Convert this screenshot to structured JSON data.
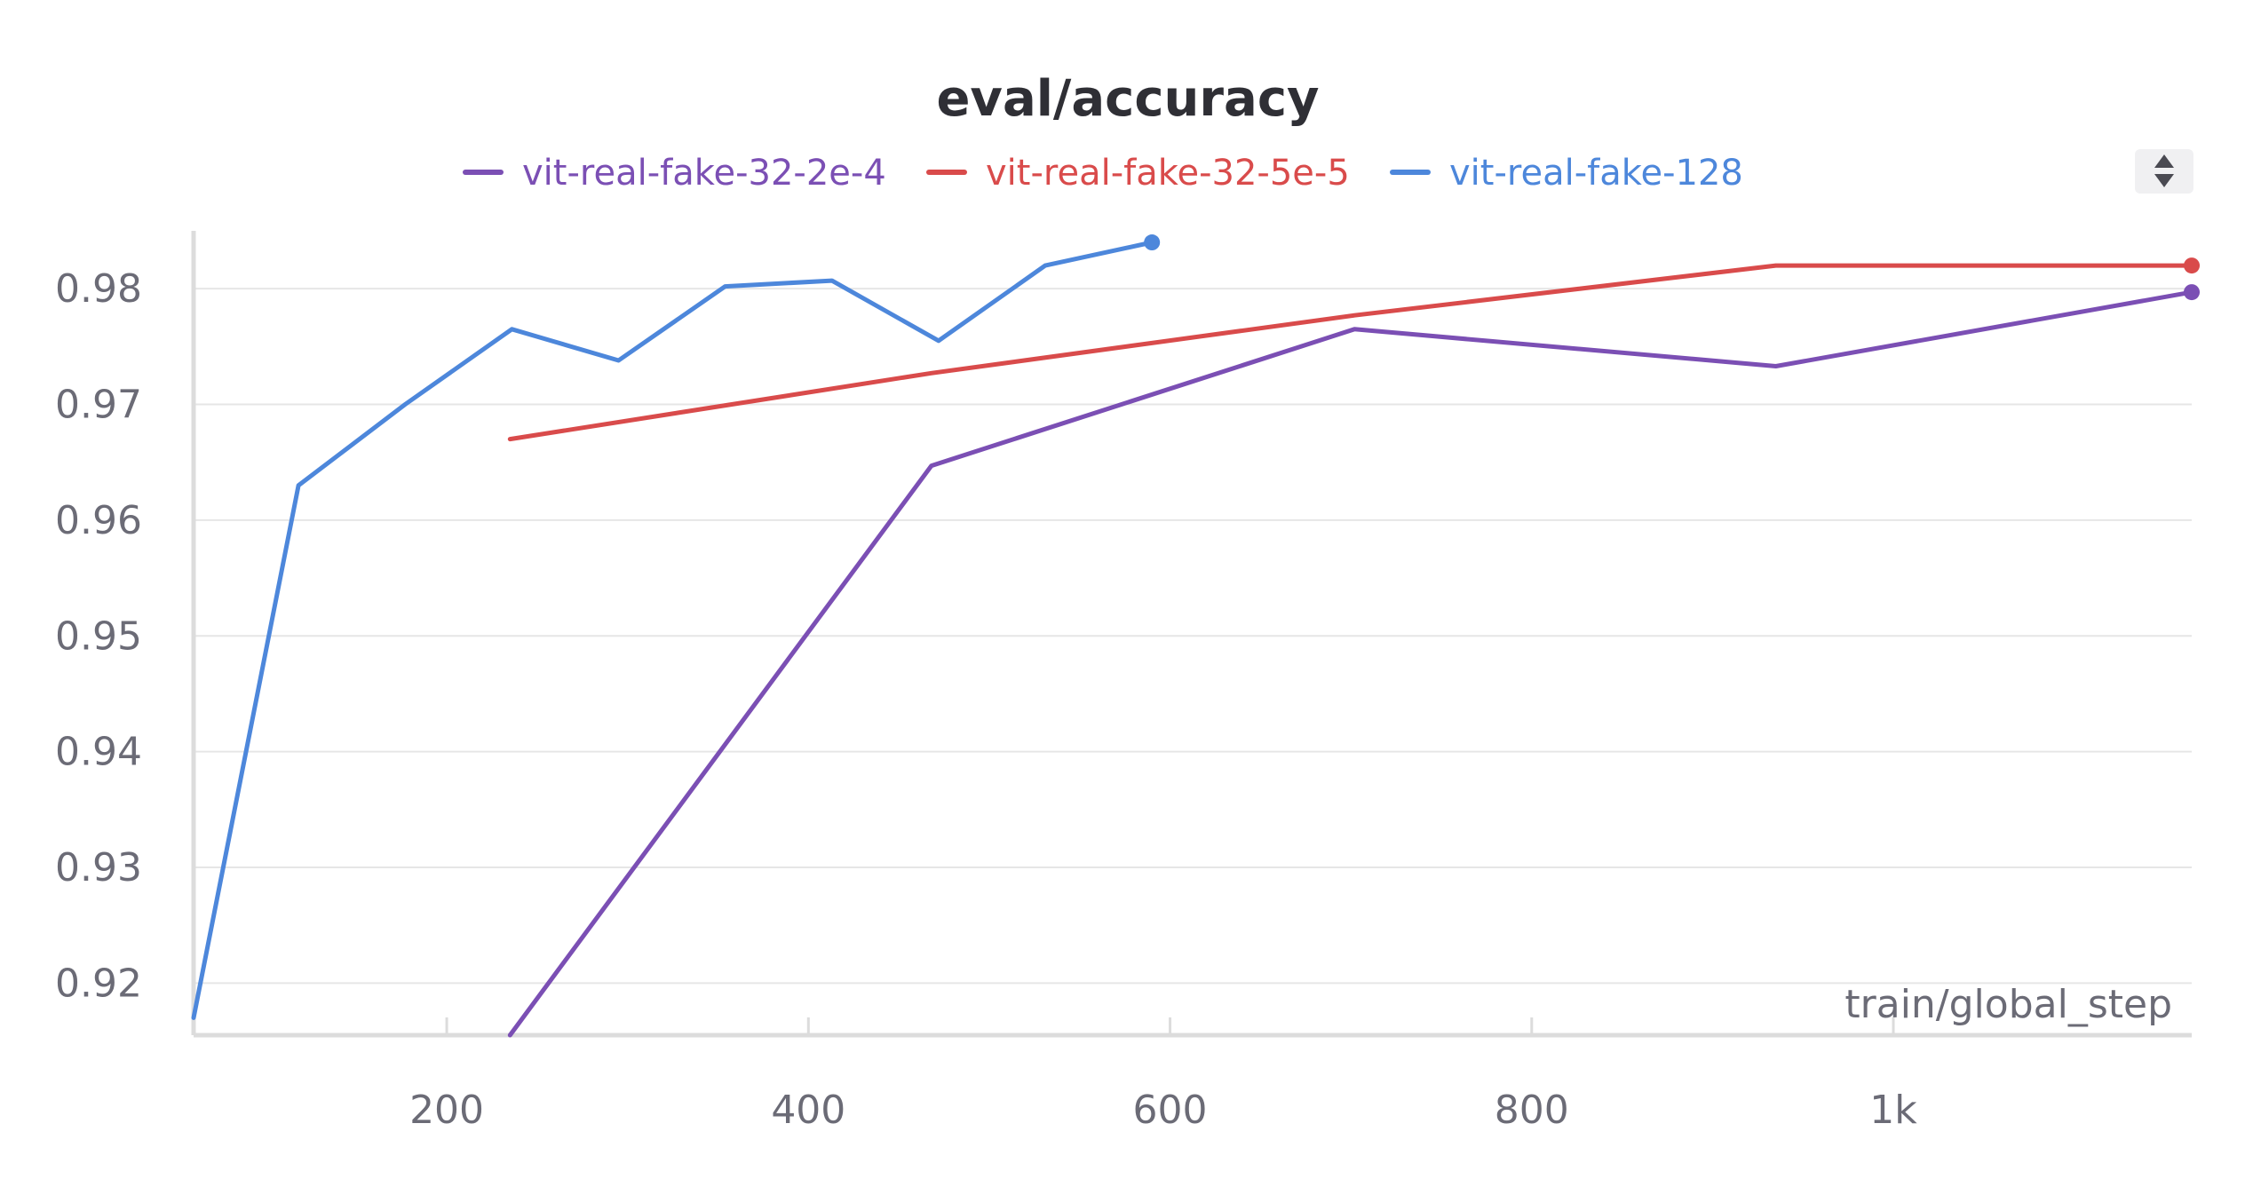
{
  "chart_data": {
    "type": "line",
    "title": "eval/accuracy",
    "xlabel": "train/global_step",
    "ylabel": "",
    "xlim": [
      60,
      1165
    ],
    "ylim": [
      0.9155,
      0.985
    ],
    "x_ticks": [
      200,
      400,
      600,
      800,
      1000
    ],
    "x_tick_labels": [
      "200",
      "400",
      "600",
      "800",
      "1k"
    ],
    "y_ticks": [
      0.92,
      0.93,
      0.94,
      0.95,
      0.96,
      0.97,
      0.98
    ],
    "y_tick_labels": [
      "0.92",
      "0.93",
      "0.94",
      "0.95",
      "0.96",
      "0.97",
      "0.98"
    ],
    "grid": true,
    "legend_position": "top-center",
    "series": [
      {
        "name": "vit-real-fake-32-2e-4",
        "color": "#7b4fb4",
        "x": [
          235,
          468,
          702,
          935,
          1165
        ],
        "y": [
          0.9155,
          0.9647,
          0.9765,
          0.9733,
          0.9797
        ]
      },
      {
        "name": "vit-real-fake-32-5e-5",
        "color": "#d94b4b",
        "x": [
          235,
          468,
          702,
          935,
          1165
        ],
        "y": [
          0.967,
          0.9727,
          0.9777,
          0.982,
          0.982
        ]
      },
      {
        "name": "vit-real-fake-128",
        "color": "#4d87db",
        "x": [
          60,
          118,
          177,
          236,
          295,
          354,
          413,
          472,
          531,
          590
        ],
        "y": [
          0.917,
          0.963,
          0.97,
          0.9765,
          0.9738,
          0.9802,
          0.9807,
          0.9755,
          0.982,
          0.984
        ]
      }
    ]
  }
}
